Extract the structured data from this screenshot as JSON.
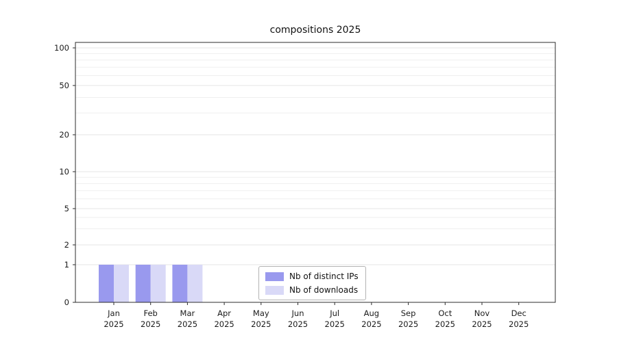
{
  "chart_data": {
    "type": "bar",
    "title": "compositions 2025",
    "months": [
      "Jan",
      "Feb",
      "Mar",
      "Apr",
      "May",
      "Jun",
      "Jul",
      "Aug",
      "Sep",
      "Oct",
      "Nov",
      "Dec"
    ],
    "year": "2025",
    "series": [
      {
        "name": "Nb of distinct IPs",
        "color": "#9999ee",
        "values": [
          1,
          1,
          1,
          0,
          0,
          0,
          0,
          0,
          0,
          0,
          0,
          0
        ]
      },
      {
        "name": "Nb of downloads",
        "color": "#d9d9f7",
        "values": [
          1,
          1,
          1,
          0,
          0,
          0,
          0,
          0,
          0,
          0,
          0,
          0
        ]
      }
    ],
    "yscale": "symlog",
    "yticks": [
      0,
      1,
      2,
      5,
      10,
      20,
      50,
      100
    ],
    "ylim": [
      0,
      110
    ],
    "grid": "horizontal-minor",
    "legend_position": "lower-center"
  }
}
